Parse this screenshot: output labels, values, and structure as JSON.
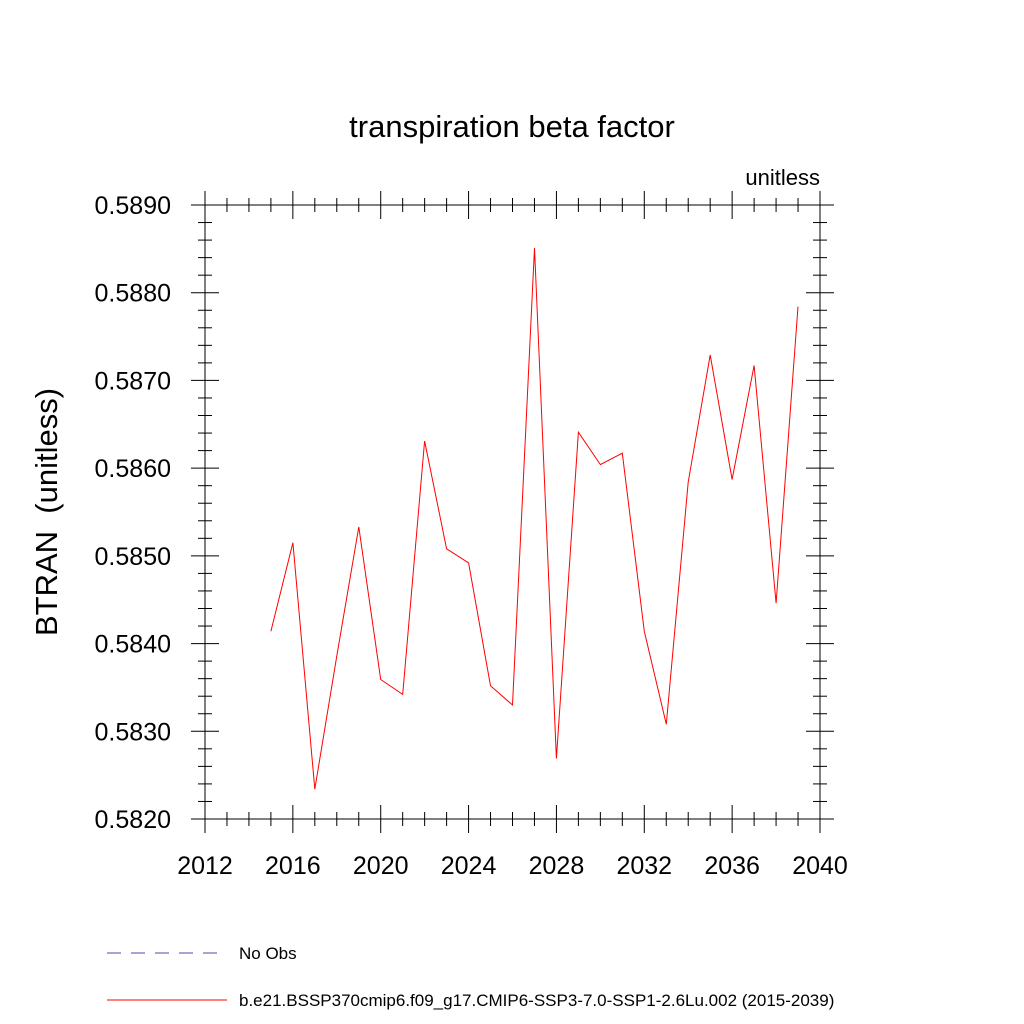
{
  "chart_data": {
    "type": "line",
    "title": "transpiration beta factor",
    "units_label": "unitless",
    "ylabel": "BTRAN  (unitless)",
    "xlabel": "",
    "xlim": [
      2012,
      2040
    ],
    "ylim": [
      0.582,
      0.589
    ],
    "x_major_ticks": [
      2012,
      2016,
      2020,
      2024,
      2028,
      2032,
      2036,
      2040
    ],
    "x_tick_labels": [
      "2012",
      "2016",
      "2020",
      "2024",
      "2028",
      "2032",
      "2036",
      "2040"
    ],
    "y_major_ticks": [
      0.582,
      0.583,
      0.584,
      0.585,
      0.586,
      0.587,
      0.588,
      0.589
    ],
    "y_tick_labels": [
      "0.5820",
      "0.5830",
      "0.5840",
      "0.5850",
      "0.5860",
      "0.5870",
      "0.5880",
      "0.5890"
    ],
    "grid": false,
    "legend_placement": "bottom",
    "series": [
      {
        "name": "b.e21.BSSP370cmip6.f09_g17.CMIP6-SSP3-7.0-SSP1-2.6Lu.002 (2015-2039)",
        "color": "#ff0000",
        "style": "solid",
        "x": [
          2015,
          2016,
          2017,
          2018,
          2019,
          2020,
          2021,
          2022,
          2023,
          2024,
          2025,
          2026,
          2027,
          2028,
          2029,
          2030,
          2031,
          2032,
          2033,
          2034,
          2035,
          2036,
          2037,
          2038,
          2039
        ],
        "values": [
          0.58414,
          0.58515,
          0.58234,
          0.58386,
          0.58533,
          0.58359,
          0.58342,
          0.58631,
          0.58508,
          0.58492,
          0.58352,
          0.5833,
          0.58851,
          0.58269,
          0.58641,
          0.58604,
          0.58617,
          0.58414,
          0.58308,
          0.58584,
          0.58729,
          0.58587,
          0.58717,
          0.58446,
          0.58784
        ]
      }
    ],
    "legend": [
      {
        "label": "No Obs",
        "color": "#5544aa",
        "style": "dashed"
      },
      {
        "label": "b.e21.BSSP370cmip6.f09_g17.CMIP6-SSP3-7.0-SSP1-2.6Lu.002 (2015-2039)",
        "color": "#ff0000",
        "style": "solid"
      }
    ]
  }
}
